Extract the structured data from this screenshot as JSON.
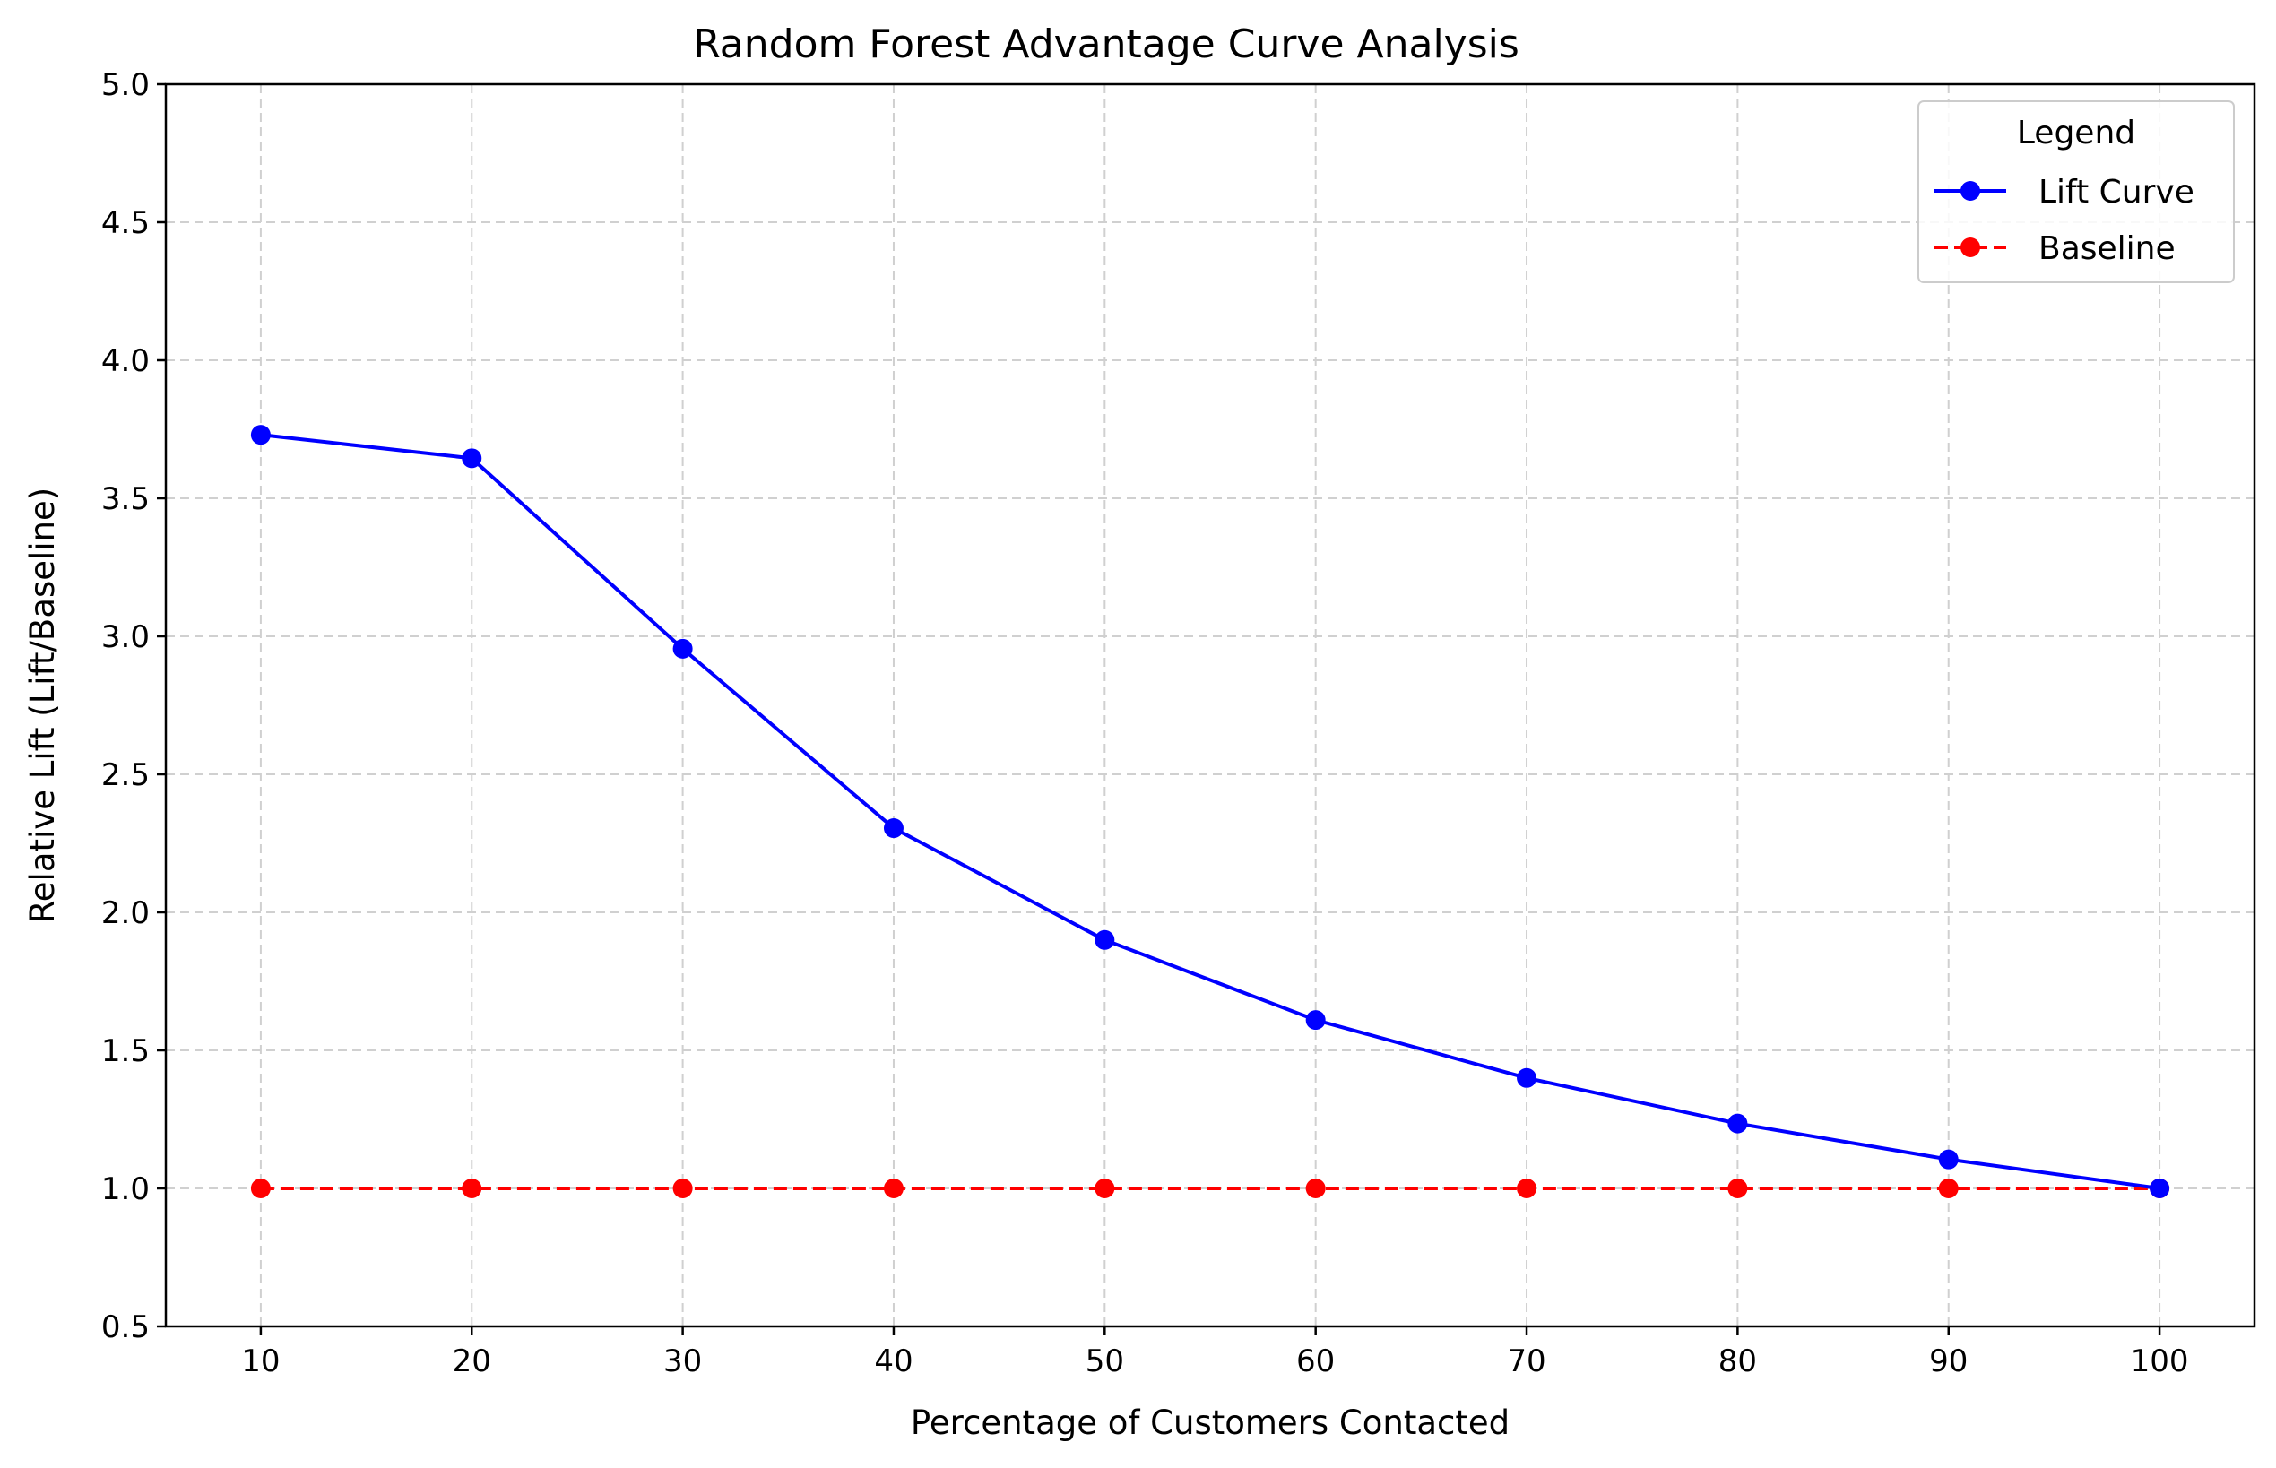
{
  "chart_data": {
    "type": "line",
    "title": "Random Forest Advantage Curve Analysis",
    "xlabel": "Percentage of Customers Contacted",
    "ylabel": "Relative Lift (Lift/Baseline)",
    "x": [
      10,
      20,
      30,
      40,
      50,
      60,
      70,
      80,
      90,
      100
    ],
    "xlim": [
      5.5,
      104.5
    ],
    "ylim": [
      0.5,
      5.0
    ],
    "xticks": [
      "10",
      "20",
      "30",
      "40",
      "50",
      "60",
      "70",
      "80",
      "90",
      "100"
    ],
    "yticks": [
      "0.5",
      "1.0",
      "1.5",
      "2.0",
      "2.5",
      "3.0",
      "3.5",
      "4.0",
      "4.5",
      "5.0"
    ],
    "grid": true,
    "legend": {
      "title": "Legend",
      "position": "top-right"
    },
    "series": [
      {
        "name": "Lift Curve",
        "color": "#0000ff",
        "line_style": "solid",
        "marker": "circle",
        "values": [
          3.73,
          3.645,
          2.955,
          2.305,
          1.9,
          1.61,
          1.4,
          1.235,
          1.105,
          1.0
        ]
      },
      {
        "name": "Baseline",
        "color": "#ff0000",
        "line_style": "dashed",
        "marker": "circle",
        "values": [
          1.0,
          1.0,
          1.0,
          1.0,
          1.0,
          1.0,
          1.0,
          1.0,
          1.0,
          1.0
        ]
      }
    ]
  }
}
